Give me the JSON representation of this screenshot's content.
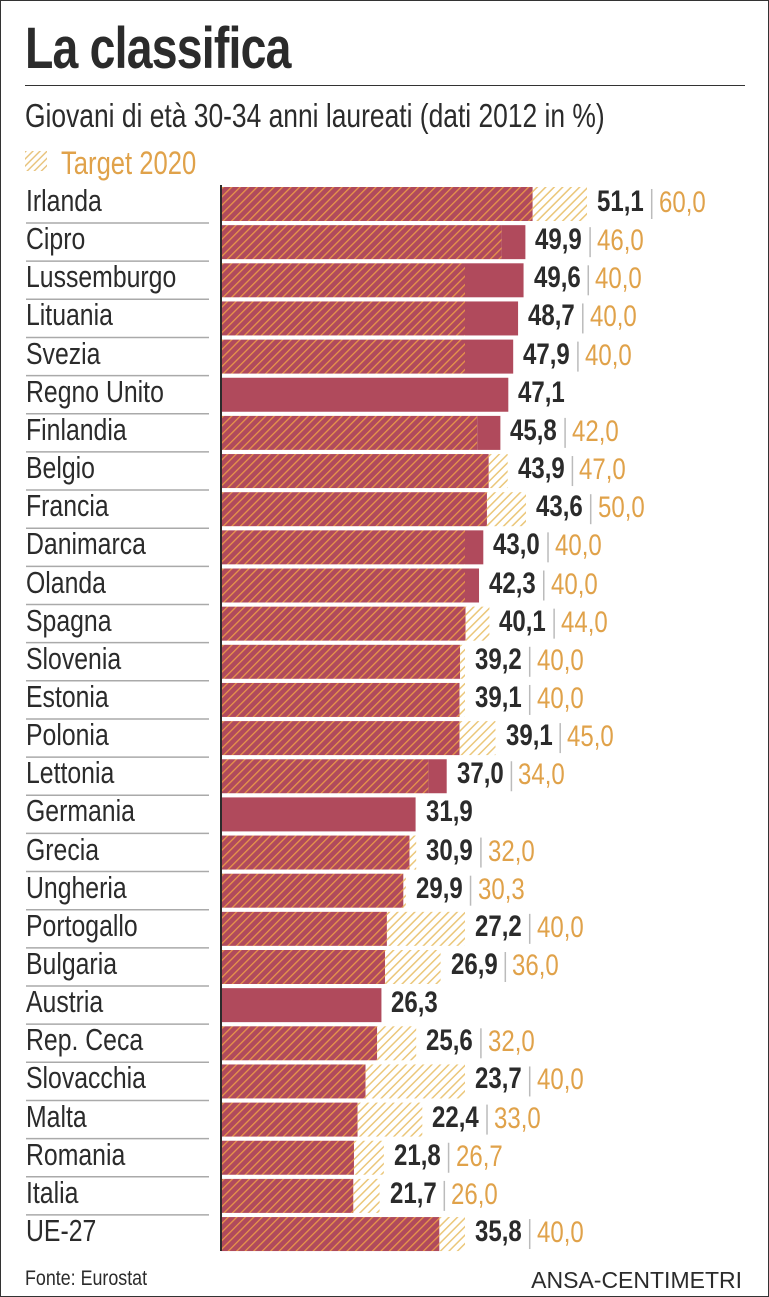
{
  "title": "La classifica",
  "subtitle": "Giovani di età 30-34 anni laureati (dati 2012 in %)",
  "legend": {
    "label": "Target 2020",
    "icon": "hatched-swatch"
  },
  "source": "Fonte: Eurostat",
  "credit": "ANSA-CENTIMETRI",
  "colors": {
    "bar": "#b04a5c",
    "bar_hatch": "#e8954a",
    "target_hatch": "#ebc77a",
    "target_text": "#e0a24a",
    "value_text": "#2b2b2b"
  },
  "chart_data": {
    "type": "bar",
    "orientation": "horizontal",
    "title": "La classifica",
    "subtitle": "Giovani di età 30-34 anni laureati (dati 2012 in %)",
    "categories": [
      "Irlanda",
      "Cipro",
      "Lussemburgo",
      "Lituania",
      "Svezia",
      "Regno Unito",
      "Finlandia",
      "Belgio",
      "Francia",
      "Danimarca",
      "Olanda",
      "Spagna",
      "Slovenia",
      "Estonia",
      "Polonia",
      "Lettonia",
      "Germania",
      "Grecia",
      "Ungheria",
      "Portogallo",
      "Bulgaria",
      "Austria",
      "Rep. Ceca",
      "Slovacchia",
      "Malta",
      "Romania",
      "Italia",
      "UE-27"
    ],
    "values": [
      "51,1",
      "49,9",
      "49,6",
      "48,7",
      "47,9",
      "47,1",
      "45,8",
      "43,9",
      "43,6",
      "43,0",
      "42,3",
      "40,1",
      "39,2",
      "39,1",
      "39,1",
      "37,0",
      "31,9",
      "30,9",
      "29,9",
      "27,2",
      "26,9",
      "26,3",
      "25,6",
      "23,7",
      "22,4",
      "21,8",
      "21,7",
      "35,8"
    ],
    "series": [
      {
        "name": "Target 2020",
        "values": [
          "60,0",
          "46,0",
          "40,0",
          "40,0",
          "40,0",
          null,
          "42,0",
          "47,0",
          "50,0",
          "40,0",
          "40,0",
          "44,0",
          "40,0",
          "40,0",
          "45,0",
          "34,0",
          null,
          "32,0",
          "30,3",
          "40,0",
          "36,0",
          null,
          "32,0",
          "40,0",
          "33,0",
          "26,7",
          "26,0",
          "40,0"
        ]
      }
    ]
  }
}
